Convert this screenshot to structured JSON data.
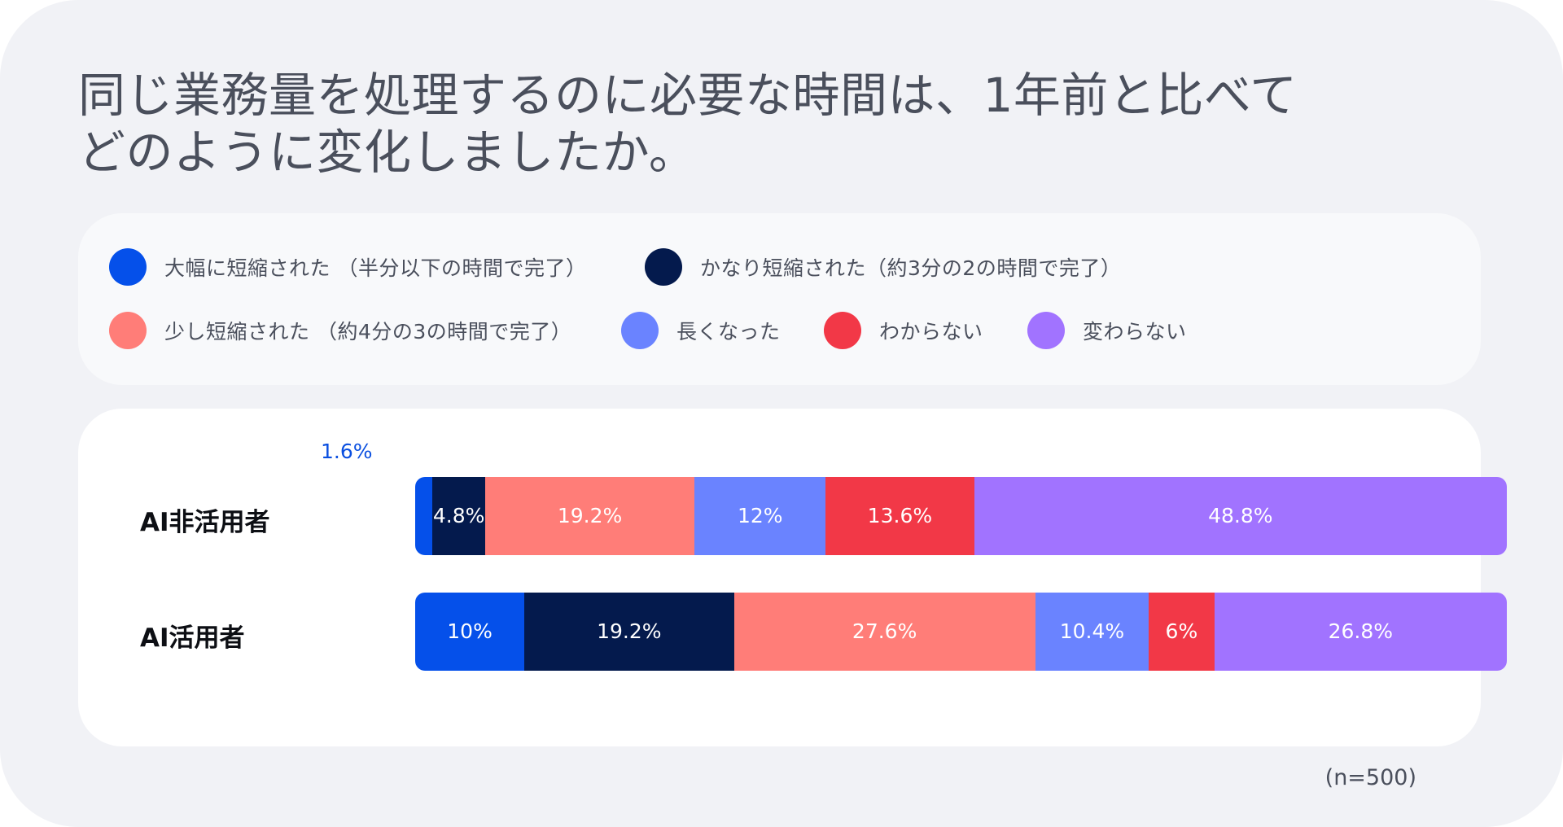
{
  "title": {
    "line1": "同じ業務量を処理するのに必要な時間は、1年前と比べて",
    "line2": "どのように変化しましたか。"
  },
  "legend": [
    {
      "label": "大幅に短縮された （半分以下の時間で完了）",
      "color": "#0550ea"
    },
    {
      "label": "かなり短縮された（約3分の2の時間で完了）",
      "color": "#041a4d"
    },
    {
      "label": "少し短縮された （約4分の3の時間で完了）",
      "color": "#ff7d78"
    },
    {
      "label": "長くなった",
      "color": "#6a83ff"
    },
    {
      "label": "わからない",
      "color": "#f23847"
    },
    {
      "label": "変わらない",
      "color": "#a173ff"
    }
  ],
  "chart_data": {
    "type": "bar",
    "orientation": "horizontal",
    "stacked": true,
    "percent": true,
    "categories": [
      "AI非活用者",
      "AI活用者"
    ],
    "series": [
      {
        "name": "大幅に短縮された （半分以下の時間で完了）",
        "color": "#0550ea",
        "values": [
          1.6,
          10
        ],
        "labels": [
          "1.6%",
          "10%"
        ]
      },
      {
        "name": "かなり短縮された（約3分の2の時間で完了）",
        "color": "#041a4d",
        "values": [
          4.8,
          19.2
        ],
        "labels": [
          "4.8%",
          "19.2%"
        ]
      },
      {
        "name": "少し短縮された （約4分の3の時間で完了）",
        "color": "#ff7d78",
        "values": [
          19.2,
          27.6
        ],
        "labels": [
          "19.2%",
          "27.6%"
        ]
      },
      {
        "name": "長くなった",
        "color": "#6a83ff",
        "values": [
          12,
          10.4
        ],
        "labels": [
          "12%",
          "10.4%"
        ]
      },
      {
        "name": "わからない",
        "color": "#f23847",
        "values": [
          13.6,
          6
        ],
        "labels": [
          "13.6%",
          "6%"
        ]
      },
      {
        "name": "変わらない",
        "color": "#a173ff",
        "values": [
          48.8,
          26.8
        ],
        "labels": [
          "48.8%",
          "26.8%"
        ]
      }
    ],
    "legend_position": "top",
    "grid": false
  },
  "footnote": "(n=500)"
}
